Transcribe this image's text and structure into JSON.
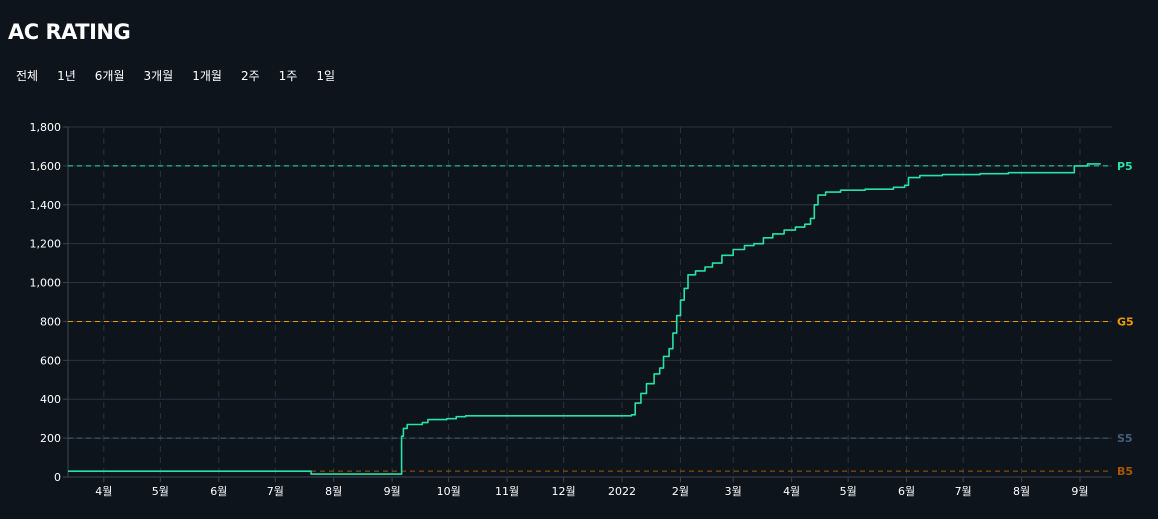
{
  "header": {
    "title": "AC RATING"
  },
  "range_tabs": [
    {
      "label": "전체"
    },
    {
      "label": "1년"
    },
    {
      "label": "6개월"
    },
    {
      "label": "3개월"
    },
    {
      "label": "1개월"
    },
    {
      "label": "2주"
    },
    {
      "label": "1주"
    },
    {
      "label": "1일"
    }
  ],
  "colors": {
    "background": "#0d141c",
    "line": "#27e2a4",
    "grid": "#2a3340",
    "axis": "#3a4350"
  },
  "chart_data": {
    "type": "line",
    "title": "",
    "xlabel": "",
    "ylabel": "",
    "x_range": [
      "2021-03-13",
      "2022-09-18"
    ],
    "ylim": [
      0,
      1800
    ],
    "yticks": [
      0,
      200,
      400,
      600,
      800,
      1000,
      1200,
      1400,
      1600,
      1800
    ],
    "ytick_labels": [
      "0",
      "200",
      "400",
      "600",
      "800",
      "1,000",
      "1,200",
      "1,400",
      "1,600",
      "1,800"
    ],
    "xticks": [
      {
        "date": "2021-04-01",
        "label": "4월"
      },
      {
        "date": "2021-05-01",
        "label": "5월"
      },
      {
        "date": "2021-06-01",
        "label": "6월"
      },
      {
        "date": "2021-07-01",
        "label": "7월"
      },
      {
        "date": "2021-08-01",
        "label": "8월"
      },
      {
        "date": "2021-09-01",
        "label": "9월"
      },
      {
        "date": "2021-10-01",
        "label": "10월"
      },
      {
        "date": "2021-11-01",
        "label": "11월"
      },
      {
        "date": "2021-12-01",
        "label": "12월"
      },
      {
        "date": "2022-01-01",
        "label": "2022"
      },
      {
        "date": "2022-02-01",
        "label": "2월"
      },
      {
        "date": "2022-03-01",
        "label": "3월"
      },
      {
        "date": "2022-04-01",
        "label": "4월"
      },
      {
        "date": "2022-05-01",
        "label": "5월"
      },
      {
        "date": "2022-06-01",
        "label": "6월"
      },
      {
        "date": "2022-07-01",
        "label": "7월"
      },
      {
        "date": "2022-08-01",
        "label": "8월"
      },
      {
        "date": "2022-09-01",
        "label": "9월"
      }
    ],
    "grid": true,
    "reference_lines": [
      {
        "label": "P5",
        "value": 1600,
        "color": "#27e2a4"
      },
      {
        "label": "G5",
        "value": 800,
        "color": "#ec9a00"
      },
      {
        "label": "S5",
        "value": 200,
        "color": "#435f7a"
      },
      {
        "label": "B5",
        "value": 30,
        "color": "#ad5600"
      }
    ],
    "series": [
      {
        "points": [
          [
            "2021-03-13",
            30
          ],
          [
            "2021-07-20",
            30
          ],
          [
            "2021-07-20",
            15
          ],
          [
            "2021-09-05",
            15
          ],
          [
            "2021-09-06",
            210
          ],
          [
            "2021-09-07",
            250
          ],
          [
            "2021-09-09",
            270
          ],
          [
            "2021-09-17",
            280
          ],
          [
            "2021-09-20",
            295
          ],
          [
            "2021-09-30",
            300
          ],
          [
            "2021-10-05",
            310
          ],
          [
            "2021-10-10",
            315
          ],
          [
            "2021-12-28",
            315
          ],
          [
            "2022-01-06",
            320
          ],
          [
            "2022-01-08",
            380
          ],
          [
            "2022-01-11",
            430
          ],
          [
            "2022-01-14",
            480
          ],
          [
            "2022-01-18",
            530
          ],
          [
            "2022-01-21",
            560
          ],
          [
            "2022-01-23",
            620
          ],
          [
            "2022-01-26",
            660
          ],
          [
            "2022-01-28",
            740
          ],
          [
            "2022-01-30",
            830
          ],
          [
            "2022-02-01",
            910
          ],
          [
            "2022-02-03",
            970
          ],
          [
            "2022-02-05",
            1040
          ],
          [
            "2022-02-09",
            1060
          ],
          [
            "2022-02-14",
            1080
          ],
          [
            "2022-02-18",
            1100
          ],
          [
            "2022-02-23",
            1140
          ],
          [
            "2022-03-01",
            1170
          ],
          [
            "2022-03-07",
            1190
          ],
          [
            "2022-03-12",
            1200
          ],
          [
            "2022-03-17",
            1230
          ],
          [
            "2022-03-22",
            1250
          ],
          [
            "2022-03-28",
            1270
          ],
          [
            "2022-04-03",
            1285
          ],
          [
            "2022-04-08",
            1300
          ],
          [
            "2022-04-11",
            1330
          ],
          [
            "2022-04-13",
            1400
          ],
          [
            "2022-04-15",
            1450
          ],
          [
            "2022-04-19",
            1465
          ],
          [
            "2022-04-27",
            1475
          ],
          [
            "2022-05-10",
            1480
          ],
          [
            "2022-05-25",
            1490
          ],
          [
            "2022-05-31",
            1500
          ],
          [
            "2022-06-02",
            1540
          ],
          [
            "2022-06-08",
            1550
          ],
          [
            "2022-06-20",
            1555
          ],
          [
            "2022-07-10",
            1560
          ],
          [
            "2022-07-25",
            1565
          ],
          [
            "2022-08-28",
            1565
          ],
          [
            "2022-08-29",
            1600
          ],
          [
            "2022-09-05",
            1610
          ],
          [
            "2022-09-12",
            1610
          ]
        ]
      }
    ]
  }
}
